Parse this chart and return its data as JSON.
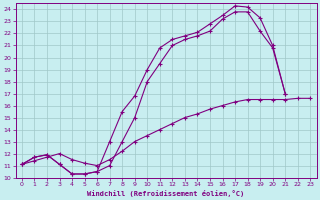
{
  "xlabel": "Windchill (Refroidissement éolien,°C)",
  "bg_color": "#c8eef0",
  "grid_color": "#a0c8c8",
  "line_color": "#800080",
  "xlim": [
    -0.5,
    23.5
  ],
  "ylim": [
    10,
    24.5
  ],
  "xticks": [
    0,
    1,
    2,
    3,
    4,
    5,
    6,
    7,
    8,
    9,
    10,
    11,
    12,
    13,
    14,
    15,
    16,
    17,
    18,
    19,
    20,
    21,
    22,
    23
  ],
  "yticks": [
    10,
    11,
    12,
    13,
    14,
    15,
    16,
    17,
    18,
    19,
    20,
    21,
    22,
    23,
    24
  ],
  "curve1_x": [
    0,
    1,
    2,
    3,
    4,
    5,
    6,
    7,
    8,
    9,
    10,
    11,
    12,
    13,
    14,
    15,
    16,
    17,
    18,
    19,
    20,
    21
  ],
  "curve1_y": [
    11.1,
    11.7,
    11.9,
    11.1,
    10.3,
    10.3,
    10.5,
    13.0,
    15.5,
    16.8,
    19.0,
    20.8,
    21.5,
    21.8,
    22.1,
    22.8,
    23.5,
    24.3,
    24.2,
    23.3,
    21.0,
    17.0
  ],
  "curve2_x": [
    0,
    1,
    2,
    3,
    4,
    5,
    6,
    7,
    8,
    9,
    10,
    11,
    12,
    13,
    14,
    15,
    16,
    17,
    18,
    19,
    20,
    21
  ],
  "curve2_y": [
    11.1,
    11.7,
    11.9,
    11.1,
    10.3,
    10.3,
    10.5,
    11.0,
    13.0,
    15.0,
    18.0,
    19.5,
    21.0,
    21.5,
    21.8,
    22.2,
    23.2,
    23.8,
    23.8,
    22.2,
    20.8,
    17.0
  ],
  "curve3_x": [
    0,
    1,
    2,
    3,
    4,
    5,
    6,
    7,
    8,
    9,
    10,
    11,
    12,
    13,
    14,
    15,
    16,
    17,
    18,
    19,
    20,
    21,
    22,
    23
  ],
  "curve3_y": [
    11.1,
    11.4,
    11.7,
    12.0,
    11.5,
    11.2,
    11.0,
    11.5,
    12.2,
    13.0,
    13.5,
    14.0,
    14.5,
    15.0,
    15.3,
    15.7,
    16.0,
    16.3,
    16.5,
    16.5,
    16.5,
    16.5,
    16.6,
    16.6
  ]
}
